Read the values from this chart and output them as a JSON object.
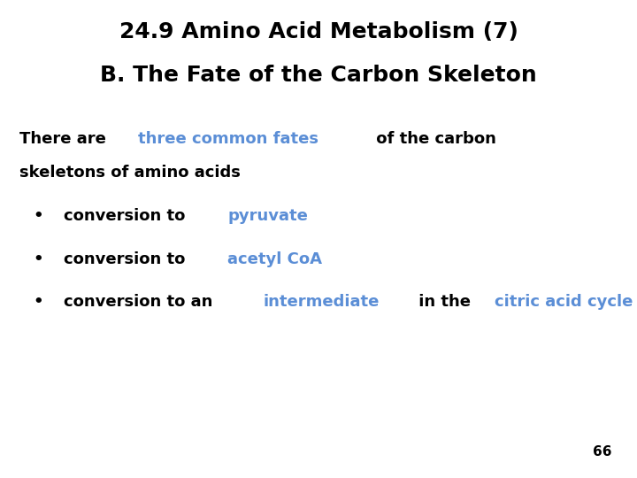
{
  "title_line1": "24.9 Amino Acid Metabolism (7)",
  "title_line2": "B. The Fate of the Carbon Skeleton",
  "title_color": "#000000",
  "title_fontsize": 18,
  "title_fontweight": "bold",
  "body_text_color": "#000000",
  "highlight_color": "#5B8ED6",
  "body_fontsize": 13,
  "body_fontweight": "bold",
  "intro_line1_parts": [
    {
      "text": "There are ",
      "color": "#000000"
    },
    {
      "text": "three common fates",
      "color": "#5B8ED6"
    },
    {
      "text": " of the carbon",
      "color": "#000000"
    }
  ],
  "intro_line2": "skeletons of amino acids",
  "bullets": [
    {
      "parts": [
        {
          "text": "conversion to ",
          "color": "#000000"
        },
        {
          "text": "pyruvate",
          "color": "#5B8ED6"
        }
      ]
    },
    {
      "parts": [
        {
          "text": "conversion to ",
          "color": "#000000"
        },
        {
          "text": "acetyl CoA",
          "color": "#5B8ED6"
        }
      ]
    },
    {
      "parts": [
        {
          "text": "conversion to an ",
          "color": "#000000"
        },
        {
          "text": "intermediate",
          "color": "#5B8ED6"
        },
        {
          "text": " in the ",
          "color": "#000000"
        },
        {
          "text": "citric acid cycle",
          "color": "#5B8ED6"
        }
      ]
    }
  ],
  "page_number": "66",
  "background_color": "#ffffff"
}
